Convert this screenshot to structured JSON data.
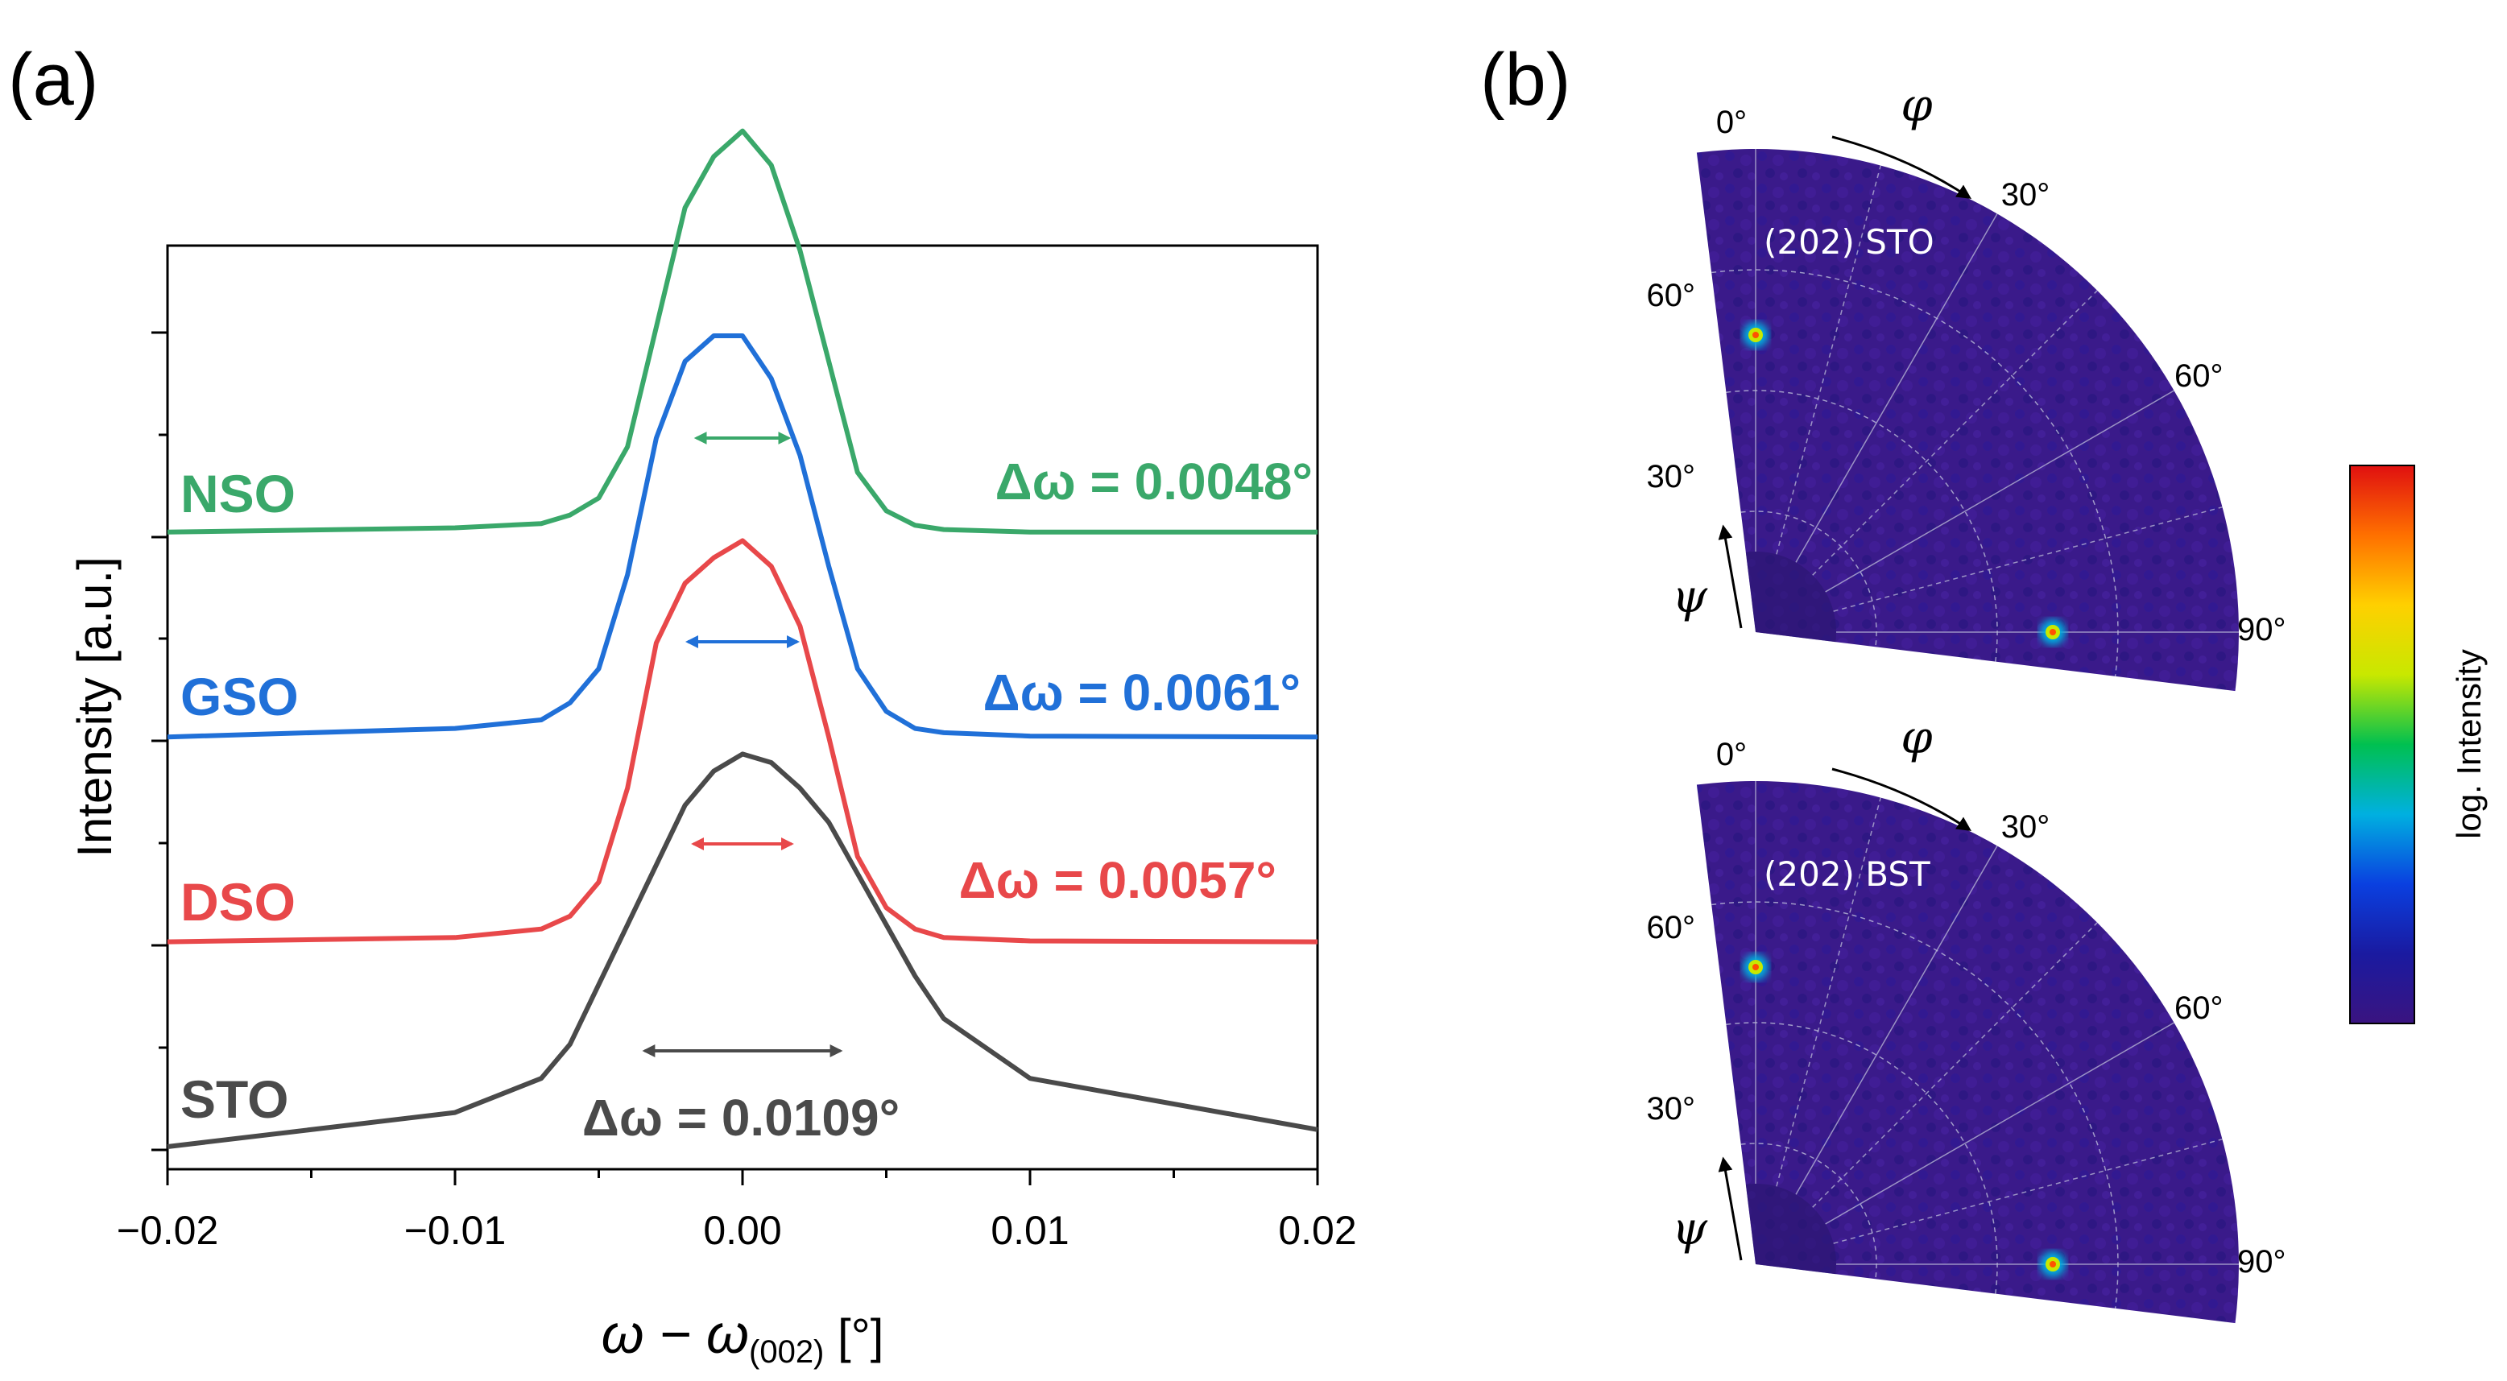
{
  "figure": {
    "panel_a_label": "(a)",
    "panel_b_label": "(b)"
  },
  "chart_data": [
    {
      "type": "line",
      "panel": "(a)",
      "title": "",
      "xlabel_parts": {
        "main": "ω − ω",
        "subscript": "(002)",
        "unit": " [°]"
      },
      "ylabel": "Intensity [a.u.]",
      "xlim": [
        -0.02,
        0.02
      ],
      "ylim": [
        0,
        1
      ],
      "xticks": [
        -0.02,
        -0.01,
        0.0,
        0.01,
        0.02
      ],
      "xtick_labels": [
        "−0.02",
        "−0.01",
        "0.00",
        "0.01",
        "0.02"
      ],
      "x": [
        -0.02,
        -0.01,
        -0.007,
        -0.006,
        -0.005,
        -0.004,
        -0.003,
        -0.002,
        -0.001,
        0.0,
        0.001,
        0.002,
        0.003,
        0.004,
        0.005,
        0.006,
        0.007,
        0.01,
        0.02
      ],
      "series": [
        {
          "name": "STO",
          "color": "#4a4a4a",
          "fwhm_label": "Δω = 0.0109°",
          "offset": 0.0,
          "arrow_halfwidth": 0.0034,
          "values": [
            0.0,
            0.04,
            0.08,
            0.12,
            0.19,
            0.26,
            0.33,
            0.4,
            0.44,
            0.46,
            0.45,
            0.42,
            0.38,
            0.32,
            0.26,
            0.2,
            0.15,
            0.08,
            0.02
          ]
        },
        {
          "name": "DSO",
          "color": "#e8484a",
          "fwhm_label": "Δω = 0.0057°",
          "offset": 0.24,
          "arrow_halfwidth": 0.0017,
          "values": [
            0.0,
            0.005,
            0.015,
            0.03,
            0.07,
            0.18,
            0.35,
            0.42,
            0.45,
            0.47,
            0.44,
            0.37,
            0.24,
            0.1,
            0.04,
            0.015,
            0.005,
            0.001,
            0.0
          ]
        },
        {
          "name": "GSO",
          "color": "#2070d8",
          "fwhm_label": "Δω = 0.0061°",
          "offset": 0.48,
          "arrow_halfwidth": 0.0019,
          "values": [
            0.0,
            0.01,
            0.02,
            0.04,
            0.08,
            0.19,
            0.35,
            0.44,
            0.47,
            0.47,
            0.42,
            0.33,
            0.2,
            0.08,
            0.03,
            0.01,
            0.005,
            0.001,
            0.0
          ]
        },
        {
          "name": "NSO",
          "color": "#3aa86a",
          "fwhm_label": "Δω = 0.0048°",
          "offset": 0.72,
          "arrow_halfwidth": 0.0016,
          "values": [
            0.0,
            0.005,
            0.01,
            0.02,
            0.04,
            0.1,
            0.24,
            0.38,
            0.44,
            0.47,
            0.43,
            0.33,
            0.2,
            0.07,
            0.025,
            0.008,
            0.003,
            0.0,
            0.0
          ]
        }
      ]
    },
    {
      "type": "heatmap",
      "panel": "(b)",
      "subtype": "polar pole figure",
      "colorbar_label": "log. Intensity",
      "colorbar_colors": [
        "#3a1480",
        "#1a1aa0",
        "#0a40e0",
        "#00b0e0",
        "#00c050",
        "#c8e800",
        "#ffd000",
        "#ff7000",
        "#e01010"
      ],
      "plots": [
        {
          "title": "(202) STO",
          "phi_symbol": "φ",
          "psi_symbol": "ψ",
          "phi_labels": [
            "0°",
            "30°"
          ],
          "psi_labels": [
            "60°",
            "30°"
          ],
          "edge_labels": [
            "60°",
            "90°"
          ],
          "peaks": [
            {
              "phi": 0,
              "psi": 45
            },
            {
              "phi": 90,
              "psi": 45
            }
          ]
        },
        {
          "title": "(202) BST",
          "phi_symbol": "φ",
          "psi_symbol": "ψ",
          "phi_labels": [
            "0°",
            "30°"
          ],
          "psi_labels": [
            "60°",
            "30°"
          ],
          "edge_labels": [
            "60°",
            "90°"
          ],
          "peaks": [
            {
              "phi": 0,
              "psi": 45
            },
            {
              "phi": 90,
              "psi": 45
            }
          ]
        }
      ]
    }
  ]
}
